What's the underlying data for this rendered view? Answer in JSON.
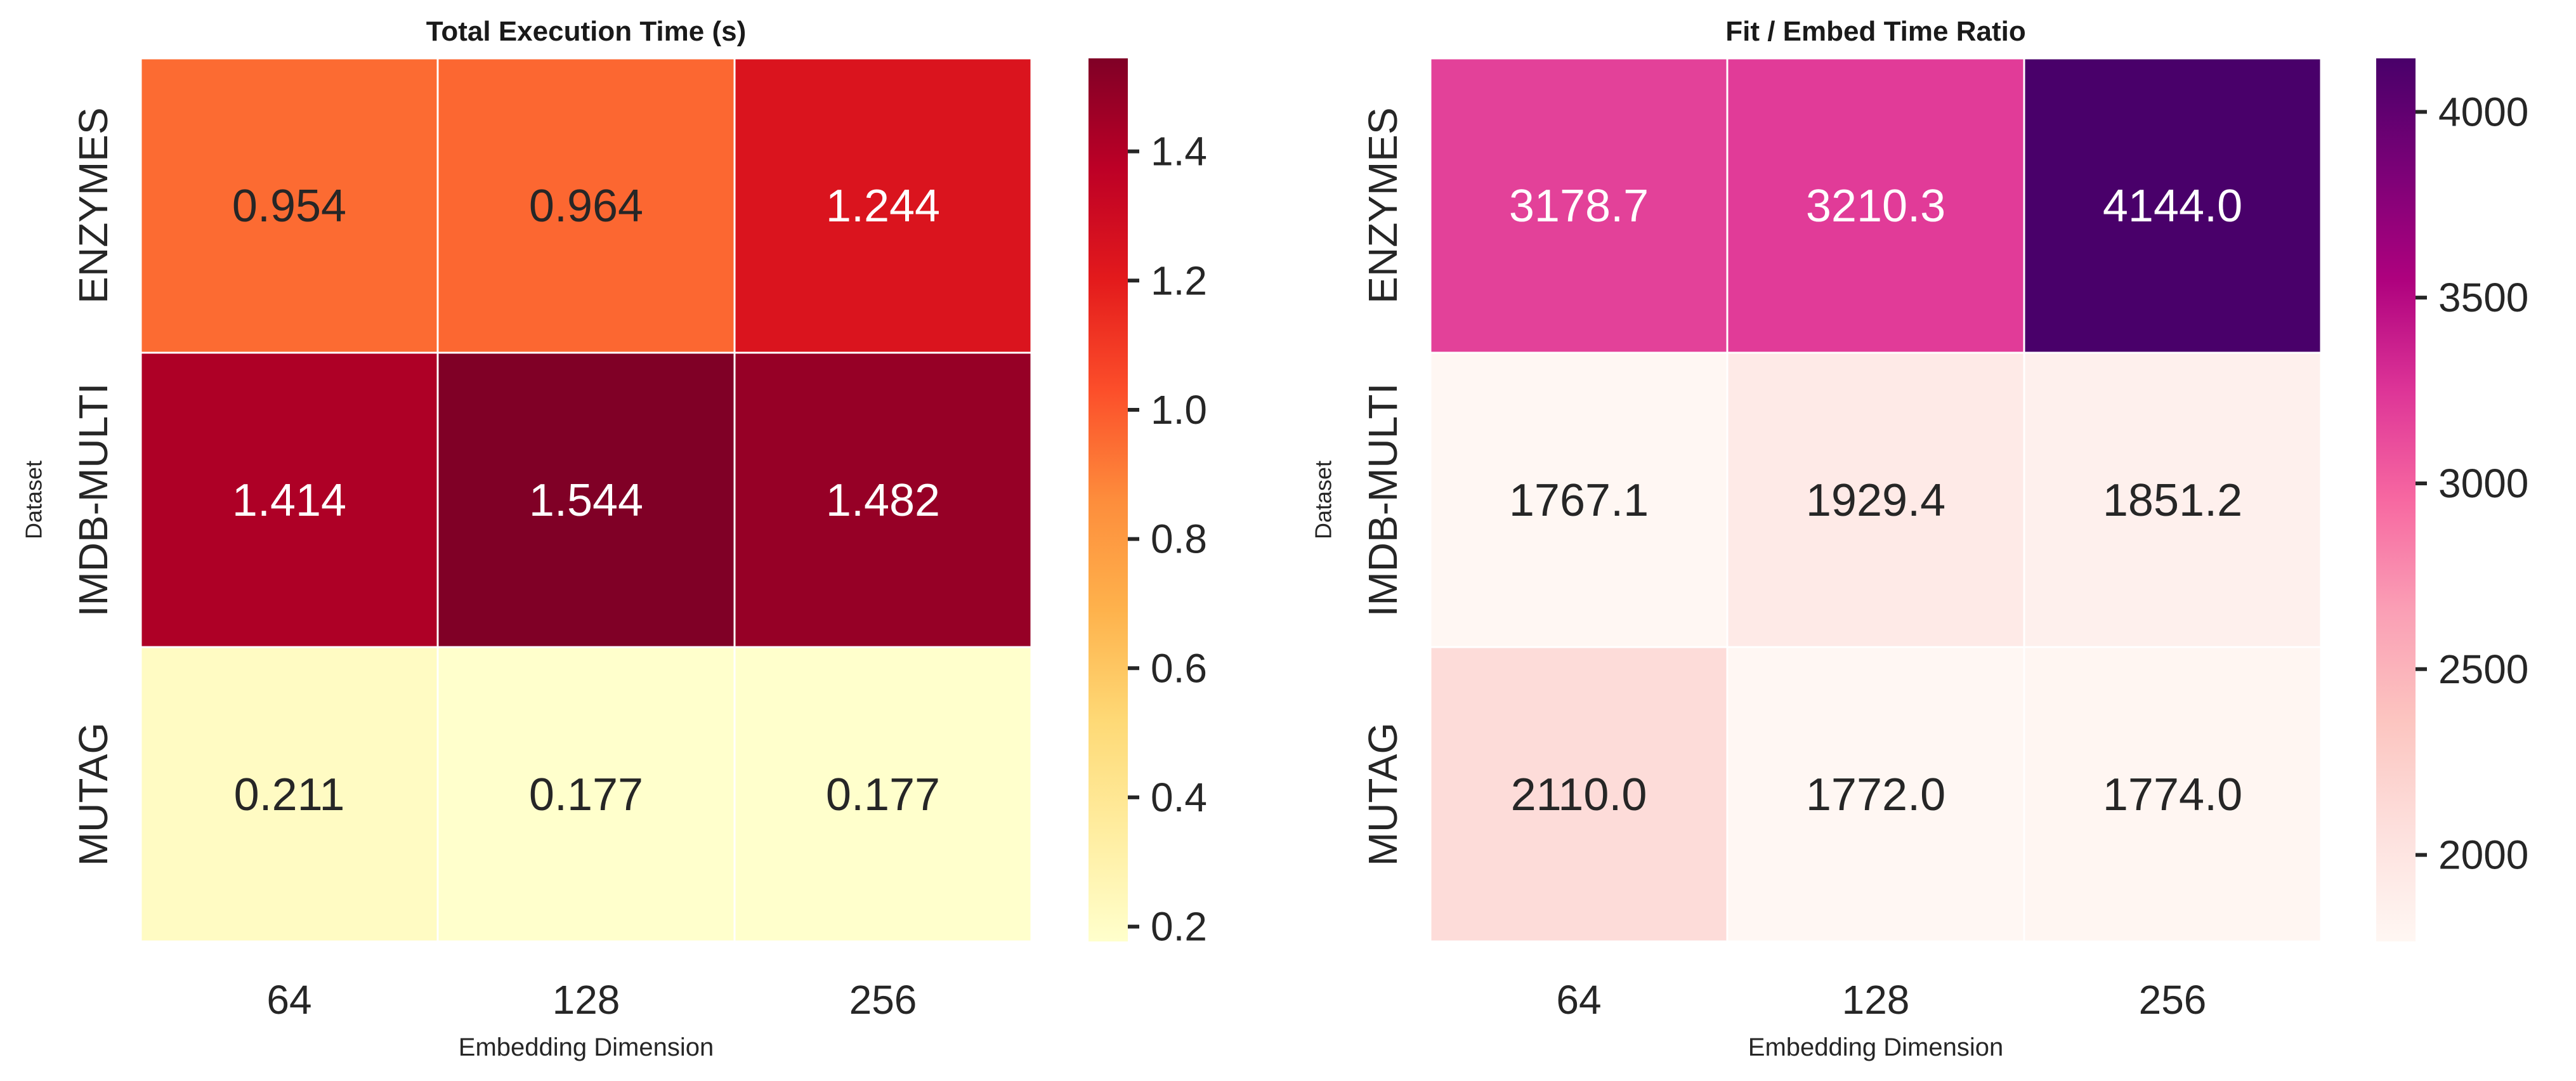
{
  "chart_data": [
    {
      "type": "heatmap",
      "title": "Total Execution Time (s)",
      "xlabel": "Embedding Dimension",
      "ylabel": "Dataset",
      "x_categories": [
        "64",
        "128",
        "256"
      ],
      "y_categories": [
        "ENZYMES",
        "IMDB-MULTI",
        "MUTAG"
      ],
      "values": [
        [
          0.954,
          0.964,
          1.244
        ],
        [
          1.414,
          1.544,
          1.482
        ],
        [
          0.211,
          0.177,
          0.177
        ]
      ],
      "value_labels": [
        [
          "0.954",
          "0.964",
          "1.244"
        ],
        [
          "1.414",
          "1.544",
          "1.482"
        ],
        [
          "0.211",
          "0.177",
          "0.177"
        ]
      ],
      "colormap": "YlOrRd",
      "colorbar": {
        "range": [
          0.177,
          1.544
        ],
        "ticks": [
          0.2,
          0.4,
          0.6,
          0.8,
          1.0,
          1.2,
          1.4
        ],
        "tick_labels": [
          "0.2",
          "0.4",
          "0.6",
          "0.8",
          "1.0",
          "1.2",
          "1.4"
        ]
      },
      "color_stops": [
        "#ffffcc",
        "#ffeda0",
        "#fed976",
        "#feb24c",
        "#fd8d3c",
        "#fc4e2a",
        "#e31a1c",
        "#bd0026",
        "#800026"
      ]
    },
    {
      "type": "heatmap",
      "title": "Fit / Embed Time Ratio",
      "xlabel": "Embedding Dimension",
      "ylabel": "Dataset",
      "x_categories": [
        "64",
        "128",
        "256"
      ],
      "y_categories": [
        "ENZYMES",
        "IMDB-MULTI",
        "MUTAG"
      ],
      "values": [
        [
          3178.7,
          3210.3,
          4144.0
        ],
        [
          1767.1,
          1929.4,
          1851.2
        ],
        [
          2110.0,
          1772.0,
          1774.0
        ]
      ],
      "value_labels": [
        [
          "3178.7",
          "3210.3",
          "4144.0"
        ],
        [
          "1767.1",
          "1929.4",
          "1851.2"
        ],
        [
          "2110.0",
          "1772.0",
          "1774.0"
        ]
      ],
      "colormap": "RdPu",
      "colorbar": {
        "range": [
          1767.1,
          4144.0
        ],
        "ticks": [
          2000,
          2500,
          3000,
          3500,
          4000
        ],
        "tick_labels": [
          "2000",
          "2500",
          "3000",
          "3500",
          "4000"
        ]
      },
      "color_stops": [
        "#fff7f3",
        "#fde0dd",
        "#fcc5c0",
        "#fa9fb5",
        "#f768a1",
        "#dd3497",
        "#ae017e",
        "#7a0177",
        "#49006a"
      ]
    }
  ]
}
